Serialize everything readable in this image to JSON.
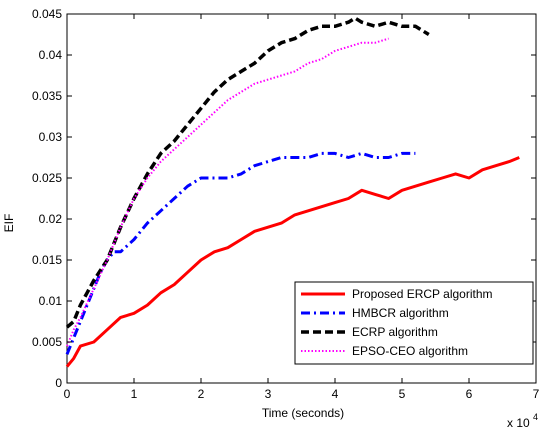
{
  "chart_data": {
    "type": "line",
    "xlabel": "Time (seconds)",
    "ylabel": "EIF",
    "x_exponent_label": "x 10",
    "x_exponent_power": "4",
    "xlim": [
      0,
      70000
    ],
    "ylim": [
      0,
      0.045
    ],
    "xticks": [
      0,
      10000,
      20000,
      30000,
      40000,
      50000,
      60000,
      70000
    ],
    "xtick_labels": [
      "0",
      "1",
      "2",
      "3",
      "4",
      "5",
      "6",
      "7"
    ],
    "yticks": [
      0,
      0.005,
      0.01,
      0.015,
      0.02,
      0.025,
      0.03,
      0.035,
      0.04,
      0.045
    ],
    "ytick_labels": [
      "0",
      "0.005",
      "0.01",
      "0.015",
      "0.02",
      "0.025",
      "0.03",
      "0.035",
      "0.04",
      "0.045"
    ],
    "grid": false,
    "legend_position": "bottom-right",
    "series": [
      {
        "name": "Proposed ERCP algorithm",
        "color": "#ff0000",
        "dash": "solid",
        "x": [
          0,
          1000,
          2000,
          4000,
          6000,
          8000,
          10000,
          12000,
          14000,
          16000,
          18000,
          20000,
          22000,
          24000,
          26000,
          28000,
          30000,
          32000,
          34000,
          36000,
          38000,
          40000,
          42000,
          44000,
          46000,
          48000,
          50000,
          52000,
          54000,
          56000,
          58000,
          60000,
          62000,
          64000,
          66000,
          67500
        ],
        "y": [
          0.002,
          0.003,
          0.0045,
          0.005,
          0.0065,
          0.008,
          0.0085,
          0.0095,
          0.011,
          0.012,
          0.0135,
          0.015,
          0.016,
          0.0165,
          0.0175,
          0.0185,
          0.019,
          0.0195,
          0.0205,
          0.021,
          0.0215,
          0.022,
          0.0225,
          0.0235,
          0.023,
          0.0225,
          0.0235,
          0.024,
          0.0245,
          0.025,
          0.0255,
          0.025,
          0.026,
          0.0265,
          0.027,
          0.0275
        ]
      },
      {
        "name": "HMBCR algorithm",
        "color": "#0000ff",
        "dash": "dashdot",
        "x": [
          0,
          1000,
          2000,
          3000,
          4000,
          5000,
          6000,
          7000,
          8000,
          10000,
          12000,
          14000,
          16000,
          18000,
          20000,
          22000,
          24000,
          26000,
          28000,
          30000,
          32000,
          34000,
          36000,
          38000,
          40000,
          42000,
          44000,
          46000,
          48000,
          50000,
          52000
        ],
        "y": [
          0.0035,
          0.0055,
          0.0075,
          0.0095,
          0.0115,
          0.0135,
          0.015,
          0.016,
          0.016,
          0.0175,
          0.0195,
          0.021,
          0.0225,
          0.024,
          0.025,
          0.025,
          0.025,
          0.0255,
          0.0265,
          0.027,
          0.0275,
          0.0275,
          0.0275,
          0.028,
          0.028,
          0.0275,
          0.028,
          0.0275,
          0.0275,
          0.028,
          0.028
        ]
      },
      {
        "name": "ECRP algorithm",
        "color": "#000000",
        "dash": "dashed",
        "x": [
          0,
          1000,
          2000,
          3000,
          4000,
          6000,
          8000,
          10000,
          12000,
          14000,
          16000,
          18000,
          20000,
          22000,
          24000,
          26000,
          28000,
          30000,
          32000,
          34000,
          36000,
          38000,
          40000,
          42000,
          43000,
          44000,
          46000,
          48000,
          50000,
          52000,
          54000
        ],
        "y": [
          0.0068,
          0.0075,
          0.0095,
          0.011,
          0.0125,
          0.015,
          0.019,
          0.0225,
          0.0255,
          0.028,
          0.0295,
          0.0315,
          0.0335,
          0.0355,
          0.037,
          0.038,
          0.039,
          0.0405,
          0.0415,
          0.042,
          0.043,
          0.0435,
          0.0435,
          0.044,
          0.0445,
          0.044,
          0.0435,
          0.044,
          0.0435,
          0.0435,
          0.0425
        ]
      },
      {
        "name": "EPSO-CEO algorithm",
        "color": "#ff00ff",
        "dash": "dotted",
        "x": [
          0,
          1000,
          2000,
          4000,
          6000,
          8000,
          10000,
          12000,
          14000,
          16000,
          18000,
          20000,
          22000,
          24000,
          26000,
          28000,
          30000,
          32000,
          34000,
          36000,
          38000,
          40000,
          42000,
          44000,
          46000,
          48000
        ],
        "y": [
          0.0045,
          0.0065,
          0.008,
          0.0115,
          0.015,
          0.019,
          0.0225,
          0.025,
          0.027,
          0.0285,
          0.03,
          0.0315,
          0.033,
          0.0345,
          0.0355,
          0.0365,
          0.037,
          0.0375,
          0.038,
          0.039,
          0.0395,
          0.0405,
          0.041,
          0.0415,
          0.0415,
          0.042
        ]
      }
    ]
  }
}
